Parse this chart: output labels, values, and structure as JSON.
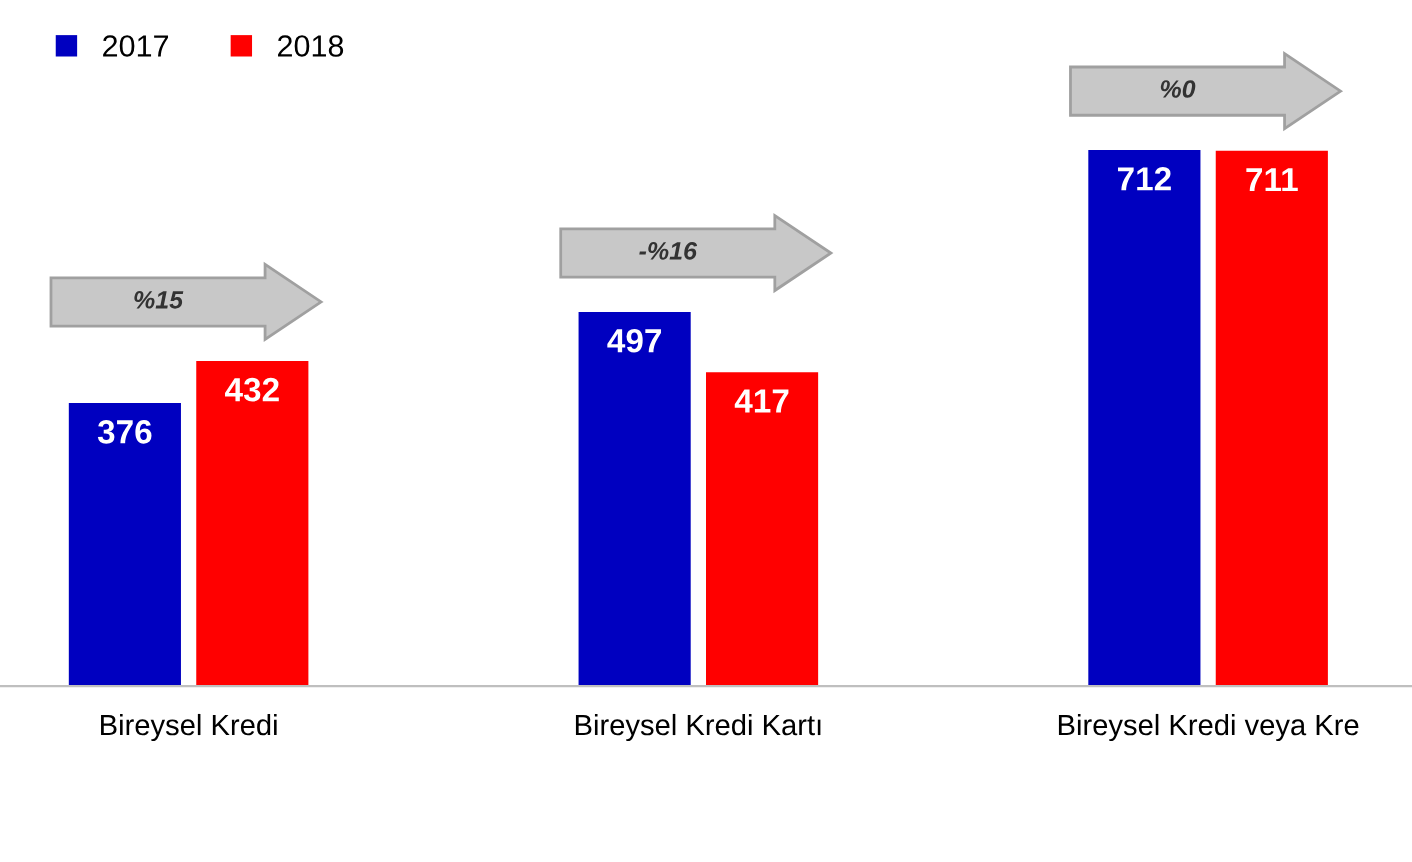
{
  "chart_data": {
    "type": "bar",
    "categories": [
      "Bireysel Kredi",
      "Bireysel Kredi Kartı",
      "Bireysel Kredi veya Kre"
    ],
    "series": [
      {
        "name": "2017",
        "color": "#0000c0",
        "values": [
          376,
          497,
          712
        ]
      },
      {
        "name": "2018",
        "color": "#ff0000",
        "values": [
          432,
          417,
          711
        ]
      }
    ],
    "data_labels": true,
    "annotations": [
      "%15",
      "-%16",
      "%0"
    ],
    "legend": "top left",
    "grid": false
  }
}
